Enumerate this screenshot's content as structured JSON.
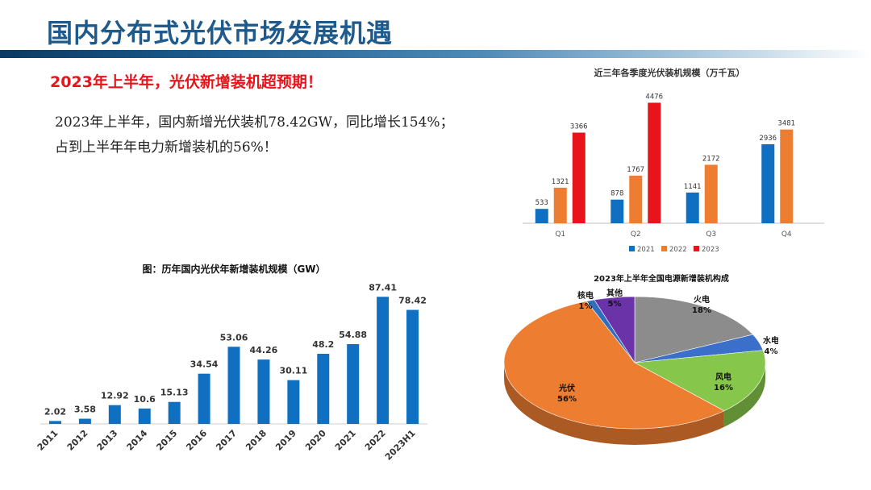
{
  "header": {
    "title": "国内分布式光伏市场发展机遇",
    "subtitle": "2023年上半年，光伏新增装机超预期！"
  },
  "body": {
    "line1": "2023年上半年，国内新增光伏装机78.42GW，同比增长154%；",
    "line2": "占到上半年年电力新增装机的56%！"
  },
  "colors": {
    "title": "#1f5a8c",
    "subtitle": "#e8141b",
    "blue": "#0f6fc0",
    "orange": "#ed7d31",
    "red": "#e8141b"
  },
  "chart_data": [
    {
      "type": "bar",
      "title": "近三年各季度光伏装机规模（万千瓦）",
      "categories": [
        "Q1",
        "Q2",
        "Q3",
        "Q4"
      ],
      "series": [
        {
          "name": "2021",
          "color": "#0f6fc0",
          "values": [
            533,
            878,
            1141,
            2936
          ]
        },
        {
          "name": "2022",
          "color": "#ed7d31",
          "values": [
            1321,
            1767,
            2172,
            3481
          ]
        },
        {
          "name": "2023",
          "color": "#e8141b",
          "values": [
            3366,
            4476,
            null,
            null
          ]
        }
      ],
      "ylim": [
        0,
        4700
      ],
      "legend": "bottom"
    },
    {
      "type": "bar",
      "title": "图：历年国内光伏年新增装机规模（GW）",
      "categories": [
        "2011",
        "2012",
        "2013",
        "2014",
        "2015",
        "2016",
        "2017",
        "2018",
        "2019",
        "2020",
        "2021",
        "2022",
        "2023H1"
      ],
      "values": [
        2.02,
        3.58,
        12.92,
        10.6,
        15.13,
        34.54,
        53.06,
        44.26,
        30.11,
        48.2,
        54.88,
        87.41,
        78.42
      ],
      "color": "#0f6fc0",
      "ylim": [
        0,
        92
      ]
    },
    {
      "type": "pie",
      "title": "2023年上半年全国电源新增装机构成",
      "slices": [
        {
          "label": "火电",
          "value": 18,
          "text": "18%",
          "color": "#8c8c8c"
        },
        {
          "label": "水电",
          "value": 4,
          "text": "4%",
          "color": "#3b6fc9"
        },
        {
          "label": "风电",
          "value": 16,
          "text": "16%",
          "color": "#86c64a"
        },
        {
          "label": "光伏",
          "value": 56,
          "text": "56%",
          "color": "#ed7d31"
        },
        {
          "label": "核电",
          "value": 1,
          "text": "1%",
          "color": "#2f6fbd"
        },
        {
          "label": "其他",
          "value": 5,
          "text": "5%",
          "color": "#6a34a8"
        }
      ]
    }
  ]
}
